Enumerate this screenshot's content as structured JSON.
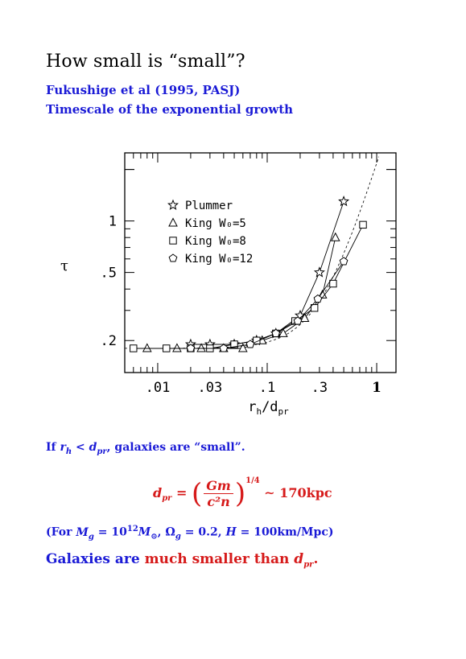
{
  "slide": {
    "title": "How small is “small”?",
    "reference": "Fukushige et al (1995, PASJ)",
    "subtitle": "Timescale of the exponential growth"
  },
  "chart_data": {
    "type": "scatter",
    "xscale": "log",
    "yscale": "log",
    "xlim": [
      0.005,
      1.5
    ],
    "ylim": [
      0.13,
      2.5
    ],
    "xlabel": "r_h/d_pr",
    "ylabel": "τ",
    "xtick_labels": [
      ".01",
      ".03",
      ".1",
      ".3",
      "1"
    ],
    "xtick_values": [
      0.01,
      0.03,
      0.1,
      0.3,
      1
    ],
    "ytick_labels": [
      "1",
      ".5",
      ".2"
    ],
    "ytick_values": [
      1,
      0.5,
      0.2
    ],
    "legend_position": "top-left",
    "series": [
      {
        "name": "Plummer",
        "marker": "star",
        "x": [
          0.02,
          0.03,
          0.05,
          0.08,
          0.12,
          0.2,
          0.3,
          0.5
        ],
        "y": [
          0.19,
          0.19,
          0.19,
          0.2,
          0.22,
          0.28,
          0.5,
          1.3
        ]
      },
      {
        "name": "King W0=5",
        "marker": "triangle",
        "x": [
          0.008,
          0.015,
          0.025,
          0.04,
          0.06,
          0.09,
          0.14,
          0.22,
          0.32,
          0.42
        ],
        "y": [
          0.18,
          0.18,
          0.18,
          0.18,
          0.18,
          0.2,
          0.22,
          0.27,
          0.37,
          0.8
        ]
      },
      {
        "name": "King W0=8",
        "marker": "square",
        "x": [
          0.006,
          0.012,
          0.02,
          0.03,
          0.05,
          0.08,
          0.12,
          0.18,
          0.27,
          0.4,
          0.75
        ],
        "y": [
          0.18,
          0.18,
          0.18,
          0.18,
          0.19,
          0.2,
          0.22,
          0.26,
          0.31,
          0.43,
          0.95
        ]
      },
      {
        "name": "King W0=12",
        "marker": "pentagon",
        "x": [
          0.02,
          0.04,
          0.07,
          0.12,
          0.19,
          0.29,
          0.5
        ],
        "y": [
          0.18,
          0.18,
          0.19,
          0.22,
          0.26,
          0.35,
          0.58
        ]
      }
    ],
    "legend_entries": [
      {
        "symbol": "☆",
        "label": "Plummer"
      },
      {
        "symbol": "△",
        "label": "King  W₀=5"
      },
      {
        "symbol": "□",
        "label": "King  W₀=8"
      },
      {
        "symbol": "⬠",
        "label": "King  W₀=12"
      }
    ]
  },
  "text": {
    "note_if": "If",
    "note_rest": ", galaxies are “small”.",
    "formula_lhs": "d",
    "formula_lhs_sub": "pr",
    "formula_num": "Gm",
    "formula_den": "c²n",
    "formula_exp": "1/4",
    "formula_rhs": "∼ 170kpc",
    "params": "(For M_g = 10^12 M_⊙, Ω_g = 0.2, H = 100km/Mpc)",
    "conclusion_a": "Galaxies are ",
    "conclusion_b": "much smaller than ",
    "conclusion_c": "d",
    "conclusion_c_sub": "pr",
    "conclusion_d": "."
  },
  "colors": {
    "blue": "#1a1ad6",
    "red": "#d61a1a"
  }
}
